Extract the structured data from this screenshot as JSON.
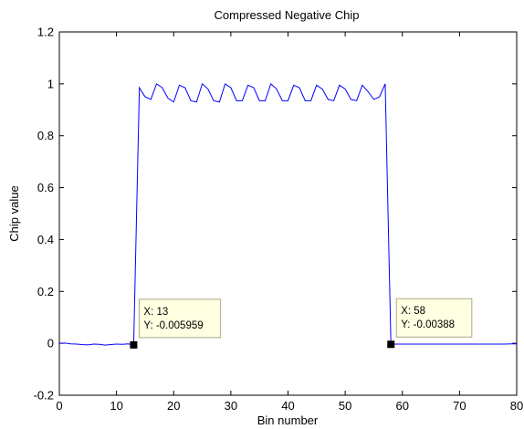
{
  "chart_data": {
    "type": "line",
    "title": "Compressed Negative Chip",
    "xlabel": "Bin number",
    "ylabel": "Chip value",
    "xlim": [
      0,
      80
    ],
    "ylim": [
      -0.2,
      1.2
    ],
    "xticks": [
      0,
      10,
      20,
      30,
      40,
      50,
      60,
      70,
      80
    ],
    "yticks": [
      -0.2,
      0,
      0.2,
      0.4,
      0.6,
      0.8,
      1,
      1.2
    ],
    "xtick_labels": [
      "0",
      "10",
      "20",
      "30",
      "40",
      "50",
      "60",
      "70",
      "80"
    ],
    "ytick_labels": [
      "-0.2",
      "0",
      "0.2",
      "0.4",
      "0.6",
      "0.8",
      "1",
      "1.2"
    ],
    "grid": false,
    "series": [
      {
        "color": "#0000ff",
        "x": [
          0,
          1,
          2,
          3,
          4,
          5,
          6,
          7,
          8,
          9,
          10,
          11,
          12,
          13,
          14,
          15,
          16,
          17,
          18,
          19,
          20,
          21,
          22,
          23,
          24,
          25,
          26,
          27,
          28,
          29,
          30,
          31,
          32,
          33,
          34,
          35,
          36,
          37,
          38,
          39,
          40,
          41,
          42,
          43,
          44,
          45,
          46,
          47,
          48,
          49,
          50,
          51,
          52,
          53,
          54,
          55,
          56,
          57,
          58,
          59,
          60,
          61,
          62,
          63,
          64,
          65,
          66,
          67,
          68,
          69,
          70,
          71,
          72,
          73,
          74,
          75,
          76,
          77,
          78,
          79,
          80
        ],
        "y": [
          0.0,
          0.001,
          -0.002,
          -0.003,
          -0.005,
          -0.006,
          -0.003,
          -0.004,
          -0.007,
          -0.005,
          -0.003,
          -0.004,
          -0.002,
          -0.006,
          0.985,
          0.95,
          0.94,
          1.0,
          0.985,
          0.945,
          0.93,
          0.995,
          0.985,
          0.935,
          0.93,
          1.0,
          0.98,
          0.935,
          0.93,
          1.0,
          0.985,
          0.935,
          0.935,
          0.995,
          0.985,
          0.935,
          0.935,
          1.0,
          0.98,
          0.935,
          0.935,
          0.995,
          0.985,
          0.935,
          0.935,
          0.995,
          0.98,
          0.94,
          0.935,
          0.995,
          0.98,
          0.94,
          0.935,
          0.995,
          0.97,
          0.94,
          0.95,
          1.0,
          -0.004,
          -0.003,
          -0.003,
          -0.003,
          -0.003,
          -0.003,
          -0.003,
          -0.003,
          -0.003,
          -0.003,
          -0.003,
          -0.003,
          -0.003,
          -0.003,
          -0.003,
          -0.003,
          -0.003,
          -0.003,
          -0.003,
          -0.003,
          -0.003,
          -0.002,
          -0.002
        ]
      }
    ],
    "annotations": [
      {
        "x": 13,
        "y": -0.005959,
        "text_x": "X: 13",
        "text_y": "Y: -0.005959"
      },
      {
        "x": 58,
        "y": -0.00388,
        "text_x": "X: 58",
        "text_y": "Y: -0.00388"
      }
    ],
    "colors": {
      "line": "#0000ff",
      "tip_background": "#ffffe1",
      "tip_border": "#aaaa88",
      "marker": "#000000"
    }
  }
}
